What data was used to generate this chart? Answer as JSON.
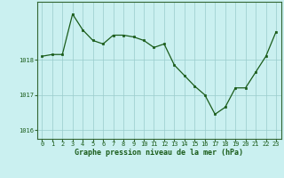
{
  "x": [
    0,
    1,
    2,
    3,
    4,
    5,
    6,
    7,
    8,
    9,
    10,
    11,
    12,
    13,
    14,
    15,
    16,
    17,
    18,
    19,
    20,
    21,
    22,
    23
  ],
  "y": [
    1018.1,
    1018.15,
    1018.15,
    1019.3,
    1018.85,
    1018.55,
    1018.45,
    1018.7,
    1018.7,
    1018.65,
    1018.55,
    1018.35,
    1018.45,
    1017.85,
    1017.55,
    1017.25,
    1017.0,
    1016.45,
    1016.65,
    1017.2,
    1017.2,
    1017.65,
    1018.1,
    1018.8
  ],
  "line_color": "#1a5c1a",
  "marker_color": "#1a5c1a",
  "bg_color": "#caf0f0",
  "grid_color": "#99cccc",
  "xlabel": "Graphe pression niveau de la mer (hPa)",
  "xlabel_color": "#1a5c1a",
  "tick_color": "#1a5c1a",
  "ylim": [
    1015.75,
    1019.65
  ],
  "yticks": [
    1016,
    1017,
    1018
  ],
  "xlim": [
    -0.5,
    23.5
  ],
  "xticks": [
    0,
    1,
    2,
    3,
    4,
    5,
    6,
    7,
    8,
    9,
    10,
    11,
    12,
    13,
    14,
    15,
    16,
    17,
    18,
    19,
    20,
    21,
    22,
    23
  ]
}
